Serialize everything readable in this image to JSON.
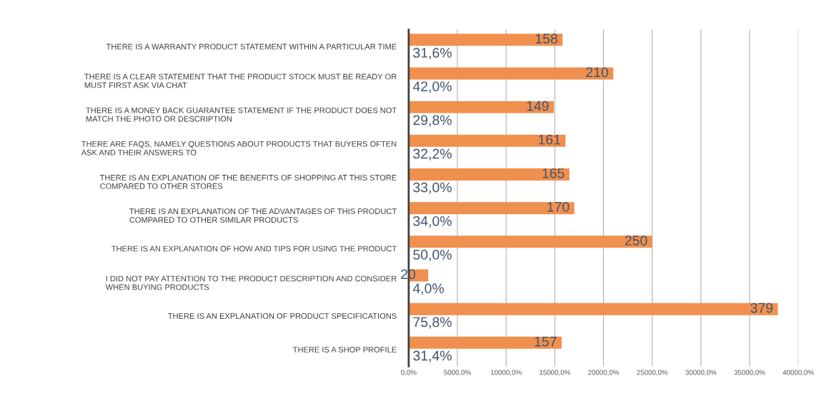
{
  "chart_data": {
    "type": "bar",
    "orientation": "horizontal",
    "categories": [
      "THERE IS A WARRANTY PRODUCT STATEMENT WITHIN A PARTICULAR TIME",
      "THERE IS A CLEAR STATEMENT THAT THE PRODUCT STOCK MUST BE READY OR\nMUST FIRST ASK VIA CHAT",
      "THERE IS A MONEY BACK GUARANTEE STATEMENT IF THE PRODUCT DOES NOT\nMATCH THE PHOTO OR DESCRIPTION",
      "THERE ARE FAQS, NAMELY QUESTIONS ABOUT PRODUCTS THAT BUYERS OFTEN\nASK AND THEIR ANSWERS TO",
      "THERE IS AN EXPLANATION OF THE BENEFITS OF SHOPPING AT THIS STORE\nCOMPARED TO OTHER STORES",
      "THERE IS AN EXPLANATION OF THE ADVANTAGES OF THIS PRODUCT\nCOMPARED TO OTHER SIMILAR PRODUCTS",
      "THERE IS AN EXPLANATION OF HOW AND TIPS FOR USING THE PRODUCT",
      "I DID NOT PAY ATTENTION TO THE PRODUCT DESCRIPTION AND CONSIDER\nWHEN BUYING PRODUCTS",
      "THERE IS AN EXPLANATION OF PRODUCT SPECIFICATIONS",
      "THERE IS A SHOP PROFILE"
    ],
    "values": [
      158,
      210,
      149,
      161,
      165,
      170,
      250,
      20,
      379,
      157
    ],
    "color": "#f0904f",
    "data_labels": true,
    "xlim": [
      0,
      400
    ],
    "xticks": [
      {
        "value": 0,
        "label": "0,0%"
      },
      {
        "value": 50,
        "label": "5000,0%"
      },
      {
        "value": 100,
        "label": "10000,0%"
      },
      {
        "value": 150,
        "label": "15000,0%"
      },
      {
        "value": 200,
        "label": "20000,0%"
      },
      {
        "value": 250,
        "label": "25000,0%"
      },
      {
        "value": 300,
        "label": "30000,0%"
      },
      {
        "value": 350,
        "label": "35000,0%"
      },
      {
        "value": 400,
        "label": "40000,0%"
      }
    ],
    "grid": "x",
    "annotations": [
      {
        "text": "31,6%",
        "y": "THERE IS A WARRANTY PRODUCT STATEMENT WITHIN A PARTICULAR TIME"
      },
      {
        "text": "42,0%",
        "y": "THERE IS A CLEAR STATEMENT THAT THE PRODUCT STOCK MUST BE READY OR\nMUST FIRST ASK VIA CHAT"
      },
      {
        "text": "29,8%",
        "y": "THERE IS A MONEY BACK GUARANTEE STATEMENT IF THE PRODUCT DOES NOT\nMATCH THE PHOTO OR DESCRIPTION"
      },
      {
        "text": "32,2%",
        "y": "THERE ARE FAQS, NAMELY QUESTIONS ABOUT PRODUCTS THAT BUYERS OFTEN\nASK AND THEIR ANSWERS TO"
      },
      {
        "text": "33,0%",
        "y": "THERE IS AN EXPLANATION OF THE BENEFITS OF SHOPPING AT THIS STORE\nCOMPARED TO OTHER STORES"
      },
      {
        "text": "34,0%",
        "y": "THERE IS AN EXPLANATION OF THE ADVANTAGES OF THIS PRODUCT\nCOMPARED TO OTHER SIMILAR PRODUCTS"
      },
      {
        "text": "50,0%",
        "y": "THERE IS AN EXPLANATION OF HOW AND TIPS FOR USING THE PRODUCT"
      },
      {
        "text": "4,0%",
        "y": "I DID NOT PAY ATTENTION TO THE PRODUCT DESCRIPTION AND CONSIDER\nWHEN BUYING PRODUCTS"
      },
      {
        "text": "75,8%",
        "y": "THERE IS AN EXPLANATION OF PRODUCT SPECIFICATIONS"
      },
      {
        "text": "31,4%",
        "y": "THERE IS A SHOP PROFILE"
      }
    ]
  }
}
